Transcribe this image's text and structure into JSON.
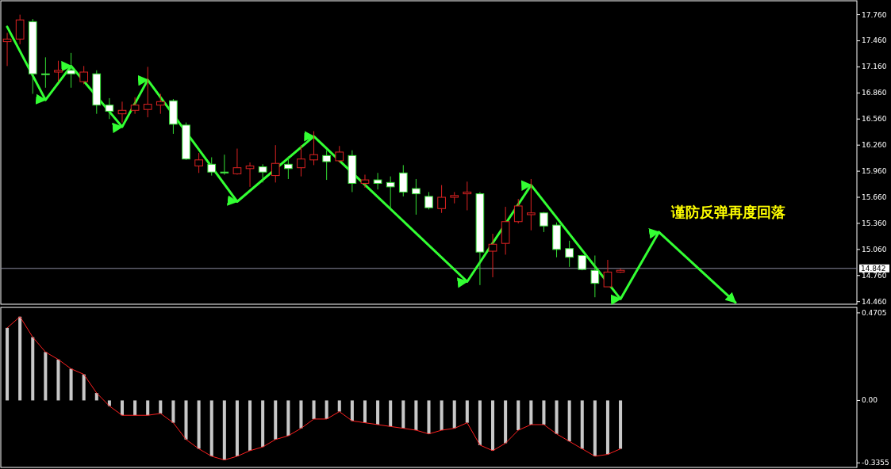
{
  "chart_data": [
    {
      "type": "candlestick",
      "categories": [
        null,
        null,
        null,
        null,
        null,
        null,
        null,
        null,
        null,
        null,
        null,
        null,
        null,
        null,
        null,
        null,
        null,
        null,
        null,
        null,
        null,
        null,
        null,
        null,
        null,
        null,
        null,
        null,
        null,
        null,
        null,
        null,
        null,
        null,
        null,
        null,
        null,
        null,
        null,
        null,
        null,
        null,
        null,
        null,
        null,
        null,
        null,
        null,
        null,
        null,
        null,
        null,
        null,
        null,
        null,
        null,
        null,
        null,
        null,
        null,
        null,
        null,
        null,
        null,
        null,
        null,
        null
      ],
      "ohlc": [
        [
          17.45,
          17.55,
          17.17,
          17.48
        ],
        [
          17.48,
          17.76,
          17.42,
          17.7
        ],
        [
          17.68,
          17.71,
          16.85,
          17.08
        ],
        [
          17.08,
          17.27,
          16.92,
          17.07
        ],
        [
          17.1,
          17.23,
          16.99,
          17.12
        ],
        [
          17.12,
          17.32,
          16.92,
          17.08
        ],
        [
          16.99,
          17.17,
          16.96,
          17.1
        ],
        [
          17.08,
          17.12,
          16.62,
          16.72
        ],
        [
          16.72,
          16.8,
          16.56,
          16.65
        ],
        [
          16.62,
          16.76,
          16.52,
          16.66
        ],
        [
          16.66,
          16.81,
          16.62,
          16.72
        ],
        [
          16.67,
          17.16,
          16.58,
          16.73
        ],
        [
          16.72,
          16.85,
          16.62,
          16.76
        ],
        [
          16.77,
          16.79,
          16.39,
          16.5
        ],
        [
          16.49,
          16.52,
          16.09,
          16.1
        ],
        [
          16.02,
          16.17,
          15.94,
          16.09
        ],
        [
          16.04,
          16.12,
          15.91,
          15.95
        ],
        [
          15.95,
          16.15,
          15.92,
          15.94
        ],
        [
          15.93,
          16.22,
          15.92,
          16.0
        ],
        [
          15.99,
          16.06,
          15.78,
          16.02
        ],
        [
          16.01,
          16.04,
          15.83,
          15.95
        ],
        [
          15.91,
          16.26,
          15.83,
          16.05
        ],
        [
          16.04,
          16.13,
          15.87,
          15.99
        ],
        [
          16.0,
          16.26,
          15.9,
          16.1
        ],
        [
          16.09,
          16.42,
          16.03,
          16.15
        ],
        [
          16.14,
          16.2,
          15.86,
          16.07
        ],
        [
          16.08,
          16.25,
          16.06,
          16.18
        ],
        [
          16.14,
          16.2,
          15.72,
          15.82
        ],
        [
          15.82,
          15.92,
          15.77,
          15.86
        ],
        [
          15.86,
          15.94,
          15.75,
          15.82
        ],
        [
          15.83,
          15.9,
          15.52,
          15.78
        ],
        [
          15.94,
          16.03,
          15.67,
          15.72
        ],
        [
          15.76,
          15.87,
          15.46,
          15.7
        ],
        [
          15.67,
          15.72,
          15.52,
          15.54
        ],
        [
          15.53,
          15.8,
          15.48,
          15.66
        ],
        [
          15.66,
          15.72,
          15.59,
          15.68
        ],
        [
          15.7,
          15.84,
          15.51,
          15.72
        ],
        [
          15.7,
          15.72,
          14.65,
          15.03
        ],
        [
          15.04,
          15.24,
          14.74,
          15.12
        ],
        [
          15.13,
          15.55,
          15.0,
          15.38
        ],
        [
          15.38,
          15.64,
          15.36,
          15.56
        ],
        [
          15.46,
          15.87,
          15.28,
          15.48
        ],
        [
          15.48,
          15.49,
          15.26,
          15.33
        ],
        [
          15.34,
          15.37,
          14.97,
          15.06
        ],
        [
          15.07,
          15.16,
          14.86,
          14.97
        ],
        [
          14.99,
          15.0,
          14.82,
          14.83
        ],
        [
          14.82,
          14.99,
          14.51,
          14.67
        ],
        [
          14.63,
          14.94,
          14.63,
          14.8
        ],
        [
          14.8,
          14.84,
          14.79,
          14.82
        ],
        null,
        null,
        null,
        null,
        null,
        null,
        null,
        null,
        null,
        null,
        null,
        null,
        null,
        null,
        null,
        null,
        null,
        null
      ],
      "series": [
        {
          "type": "line",
          "color": "#33ff33",
          "values": [
            17.62,
            null,
            null,
            16.78,
            null,
            17.17,
            null,
            null,
            null,
            16.47,
            null,
            17.01,
            null,
            null,
            null,
            null,
            null,
            null,
            15.61,
            null,
            null,
            null,
            null,
            null,
            16.36,
            null,
            null,
            null,
            null,
            null,
            null,
            null,
            null,
            null,
            null,
            null,
            14.69,
            null,
            null,
            null,
            null,
            15.8,
            null,
            null,
            null,
            null,
            null,
            null,
            14.49,
            null,
            null,
            15.26,
            null,
            null,
            null,
            null,
            null,
            14.45,
            null,
            null,
            null,
            null,
            null,
            null,
            null,
            null,
            null
          ]
        }
      ],
      "ylim": [
        14.43,
        17.92
      ],
      "yticks": [
        {
          "value": 17.76,
          "label": "17.760"
        },
        {
          "value": 17.46,
          "label": "17.460"
        },
        {
          "value": 17.16,
          "label": "17.160"
        },
        {
          "value": 16.86,
          "label": "16.860"
        },
        {
          "value": 16.56,
          "label": "16.560"
        },
        {
          "value": 16.26,
          "label": "16.260"
        },
        {
          "value": 15.96,
          "label": "15.960"
        },
        {
          "value": 15.66,
          "label": "15.660"
        },
        {
          "value": 15.36,
          "label": "15.360"
        },
        {
          "value": 15.06,
          "label": "15.060"
        },
        {
          "value": 14.76,
          "label": "14.760"
        },
        {
          "value": 14.46,
          "label": "14.460"
        }
      ],
      "ref_lines": [
        {
          "axis": "y",
          "value": 14.842,
          "label": "14.842",
          "color": "#8c8ca0"
        }
      ],
      "annotations": [
        "谨防反弹再度回落"
      ]
    },
    {
      "type": "bar",
      "categories": [
        null,
        null,
        null,
        null,
        null,
        null,
        null,
        null,
        null,
        null,
        null,
        null,
        null,
        null,
        null,
        null,
        null,
        null,
        null,
        null,
        null,
        null,
        null,
        null,
        null,
        null,
        null,
        null,
        null,
        null,
        null,
        null,
        null,
        null,
        null,
        null,
        null,
        null,
        null,
        null,
        null,
        null,
        null,
        null,
        null,
        null,
        null,
        null,
        null,
        null,
        null,
        null,
        null,
        null,
        null,
        null,
        null,
        null,
        null,
        null,
        null,
        null,
        null,
        null,
        null,
        null,
        null
      ],
      "series": [
        {
          "type": "bar",
          "color": "#c8c8c8",
          "values": [
            0.39,
            0.45,
            0.34,
            0.26,
            0.22,
            0.17,
            0.14,
            0.04,
            -0.03,
            -0.08,
            -0.08,
            -0.08,
            -0.07,
            -0.12,
            -0.21,
            -0.26,
            -0.3,
            -0.32,
            -0.3,
            -0.27,
            -0.25,
            -0.21,
            -0.19,
            -0.15,
            -0.1,
            -0.1,
            -0.06,
            -0.11,
            -0.12,
            -0.13,
            -0.14,
            -0.15,
            -0.16,
            -0.18,
            -0.16,
            -0.15,
            -0.12,
            -0.24,
            -0.27,
            -0.23,
            -0.16,
            -0.13,
            -0.13,
            -0.18,
            -0.22,
            -0.26,
            -0.3,
            -0.29,
            -0.26,
            null,
            null,
            null,
            null,
            null,
            null,
            null,
            null,
            null,
            null,
            null,
            null,
            null,
            null,
            null,
            null,
            null,
            null
          ]
        },
        {
          "type": "line",
          "color": "#ff2020",
          "values": [
            0.39,
            0.45,
            0.34,
            0.26,
            0.22,
            0.17,
            0.14,
            0.04,
            -0.03,
            -0.08,
            -0.08,
            -0.08,
            -0.07,
            -0.12,
            -0.21,
            -0.26,
            -0.3,
            -0.32,
            -0.3,
            -0.27,
            -0.25,
            -0.21,
            -0.19,
            -0.15,
            -0.1,
            -0.1,
            -0.06,
            -0.11,
            -0.12,
            -0.13,
            -0.14,
            -0.15,
            -0.16,
            -0.18,
            -0.16,
            -0.15,
            -0.12,
            -0.24,
            -0.27,
            -0.23,
            -0.16,
            -0.13,
            -0.13,
            -0.18,
            -0.22,
            -0.26,
            -0.3,
            -0.29,
            -0.26,
            null,
            null,
            null,
            null,
            null,
            null,
            null,
            null,
            null,
            null,
            null,
            null,
            null,
            null,
            null,
            null,
            null,
            null
          ]
        }
      ],
      "ylim": [
        -0.36,
        0.5
      ],
      "yticks": [
        0.4705,
        {
          "value": 0,
          "label": "0.00"
        },
        -0.3355
      ]
    }
  ]
}
